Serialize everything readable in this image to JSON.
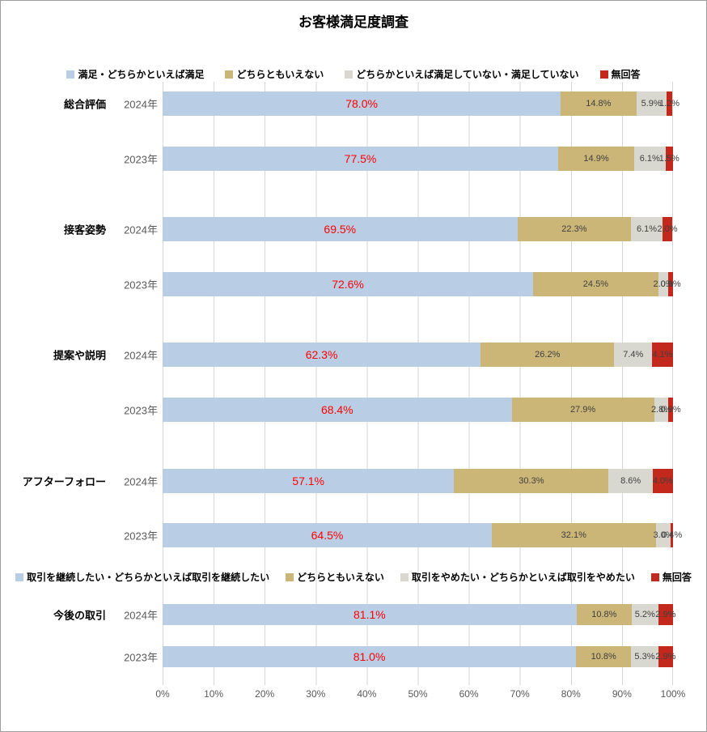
{
  "title": "お客様満足度調査",
  "colors": {
    "series": [
      "#b9cde4",
      "#cbb677",
      "#d8d8d0",
      "#c2291c"
    ],
    "value_label_red": "#ff0000",
    "segment_label_dark": "#3f3f3f",
    "gridline": "#d6d6d6"
  },
  "chart_data": {
    "type": "bar",
    "stacked": true,
    "orientation": "horizontal",
    "title": "お客様満足度調査",
    "xlabel": "",
    "ylabel": "",
    "xlim": [
      0,
      100
    ],
    "x_ticks": [
      "0%",
      "10%",
      "20%",
      "30%",
      "40%",
      "50%",
      "60%",
      "70%",
      "80%",
      "90%",
      "100%"
    ],
    "grid": true,
    "unit": "%",
    "legends": {
      "satisfaction": {
        "items": [
          "満足・どちらかといえば満足",
          "どちらともいえない",
          "どちらかといえば満足していない・満足していない",
          "無回答"
        ]
      },
      "transaction": {
        "items": [
          "取引を継続したい・どちらかといえば取引を継続したい",
          "どちらともいえない",
          "取引をやめたい・どちらかといえば取引をやめたい",
          "無回答"
        ]
      }
    },
    "groups": [
      {
        "category": "総合評価",
        "legend": "satisfaction",
        "rows": [
          {
            "year": "2024年",
            "values": [
              78.0,
              14.8,
              5.9,
              1.2
            ]
          },
          {
            "year": "2023年",
            "values": [
              77.5,
              14.9,
              6.1,
              1.5
            ]
          }
        ]
      },
      {
        "category": "接客姿勢",
        "legend": "satisfaction",
        "rows": [
          {
            "year": "2024年",
            "values": [
              69.5,
              22.3,
              6.1,
              2.0
            ]
          },
          {
            "year": "2023年",
            "values": [
              72.6,
              24.5,
              2.0,
              0.9
            ]
          }
        ]
      },
      {
        "category": "提案や説明",
        "legend": "satisfaction",
        "rows": [
          {
            "year": "2024年",
            "values": [
              62.3,
              26.2,
              7.4,
              4.1
            ]
          },
          {
            "year": "2023年",
            "values": [
              68.4,
              27.9,
              2.8,
              0.9
            ]
          }
        ]
      },
      {
        "category": "アフターフォロー",
        "legend": "satisfaction",
        "rows": [
          {
            "year": "2024年",
            "values": [
              57.1,
              30.3,
              8.6,
              4.0
            ]
          },
          {
            "year": "2023年",
            "values": [
              64.5,
              32.1,
              3.0,
              0.4
            ]
          }
        ]
      },
      {
        "category": "今後の取引",
        "legend": "transaction",
        "rows": [
          {
            "year": "2024年",
            "values": [
              81.1,
              10.8,
              5.2,
              2.9
            ]
          },
          {
            "year": "2023年",
            "values": [
              81.0,
              10.8,
              5.3,
              2.9
            ]
          }
        ]
      }
    ]
  }
}
